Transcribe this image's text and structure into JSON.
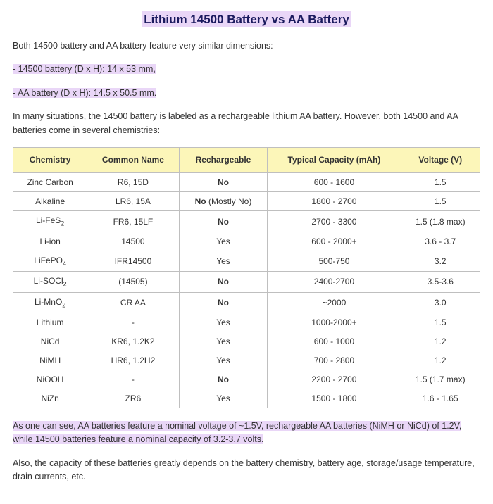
{
  "title": "Lithium 14500 Battery vs AA Battery",
  "intro": "Both 14500 battery and AA battery feature very similar dimensions:",
  "dim1": "- 14500 battery (D x H): 14 x 53 mm,",
  "dim2": "- AA battery (D x H): 14.5 x 50.5 mm.",
  "lead": "In many situations, the 14500 battery is labeled as a rechargeable lithium AA battery. However, both 14500 and AA batteries come in several chemistries:",
  "table": {
    "headers": {
      "chemistry": "Chemistry",
      "common": "Common Name",
      "recharge": "Rechargeable",
      "capacity": "Typical Capacity (mAh)",
      "voltage": "Voltage (V)"
    },
    "rows": [
      {
        "chem": "Zinc Carbon",
        "chem_html": "Zinc Carbon",
        "common": "R6, 15D",
        "rech": "No",
        "rech_bold": true,
        "cap": "600 - 1600",
        "volt": "1.5"
      },
      {
        "chem": "Alkaline",
        "chem_html": "Alkaline",
        "common": "LR6, 15A",
        "rech": "No",
        "rech_suffix": " (Mostly No)",
        "rech_bold": true,
        "cap": "1800 - 2700",
        "volt": "1.5"
      },
      {
        "chem": "Li-FeS2",
        "chem_html": "Li-FeS<sub>2</sub>",
        "common": "FR6, 15LF",
        "rech": "No",
        "rech_bold": true,
        "cap": "2700 - 3300",
        "volt": "1.5 (1.8 max)"
      },
      {
        "chem": "Li-ion",
        "chem_html": "Li-ion",
        "common": "14500",
        "rech": "Yes",
        "rech_bold": false,
        "cap": "600 - 2000+",
        "volt": "3.6 - 3.7"
      },
      {
        "chem": "LiFePO4",
        "chem_html": "LiFePO<sub>4</sub>",
        "common": "IFR14500",
        "rech": "Yes",
        "rech_bold": false,
        "cap": "500-750",
        "volt": "3.2"
      },
      {
        "chem": "Li-SOCl2",
        "chem_html": "Li-SOCl<sub>2</sub>",
        "common": "(14505)",
        "rech": "No",
        "rech_bold": true,
        "cap": "2400-2700",
        "volt": "3.5-3.6"
      },
      {
        "chem": "Li-MnO2",
        "chem_html": "Li-MnO<sub>2</sub>",
        "common": "CR AA",
        "rech": "No",
        "rech_bold": true,
        "cap": "~2000",
        "volt": "3.0"
      },
      {
        "chem": "Lithium",
        "chem_html": "Lithium",
        "common": "-",
        "rech": "Yes",
        "rech_bold": false,
        "cap": "1000-2000+",
        "volt": "1.5"
      },
      {
        "chem": "NiCd",
        "chem_html": "NiCd",
        "common": "KR6, 1.2K2",
        "rech": "Yes",
        "rech_bold": false,
        "cap": "600 - 1000",
        "volt": "1.2"
      },
      {
        "chem": "NiMH",
        "chem_html": "NiMH",
        "common": "HR6, 1.2H2",
        "rech": "Yes",
        "rech_bold": false,
        "cap": "700 - 2800",
        "volt": "1.2"
      },
      {
        "chem": "NiOOH",
        "chem_html": "NiOOH",
        "common": "-",
        "rech": "No",
        "rech_bold": true,
        "cap": "2200 - 2700",
        "volt": "1.5 (1.7 max)"
      },
      {
        "chem": "NiZn",
        "chem_html": "NiZn",
        "common": "ZR6",
        "rech": "Yes",
        "rech_bold": false,
        "cap": "1500 - 1800",
        "volt": "1.6 - 1.65"
      }
    ]
  },
  "summary": "As one can see, AA batteries feature a nominal voltage of ~1.5V, rechargeable AA batteries (NiMH or NiCd) of 1.2V, while 14500 batteries feature a nominal capacity of 3.2-3.7 volts.",
  "closing": "Also, the capacity of these batteries greatly depends on the battery chemistry, battery age, storage/usage temperature, drain currents, etc."
}
